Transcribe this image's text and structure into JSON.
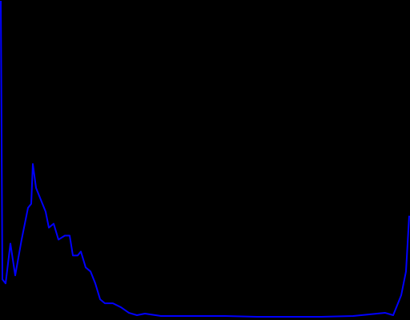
{
  "chart_data": {
    "type": "line",
    "x": [
      0,
      1,
      3,
      6,
      9,
      13,
      17,
      19,
      20,
      22,
      25,
      28,
      30,
      33,
      36,
      40,
      43,
      45,
      48,
      50,
      53,
      56,
      59,
      62,
      65,
      70,
      75,
      80,
      85,
      90,
      100,
      120,
      140,
      160,
      180,
      200,
      220,
      240,
      245,
      250,
      253,
      255
    ],
    "series": [
      {
        "color": "#0000ff",
        "values": [
          400,
          50,
          45,
          95,
          55,
          100,
          140,
          145,
          195,
          165,
          150,
          135,
          115,
          120,
          100,
          105,
          105,
          80,
          80,
          85,
          65,
          60,
          45,
          25,
          20,
          20,
          15,
          8,
          5,
          7,
          4,
          4,
          4,
          3,
          3,
          3,
          4,
          8,
          5,
          30,
          60,
          130
        ]
      }
    ],
    "xlim": [
      0,
      255
    ],
    "ylim": [
      0,
      400
    ],
    "background": "#000000"
  }
}
